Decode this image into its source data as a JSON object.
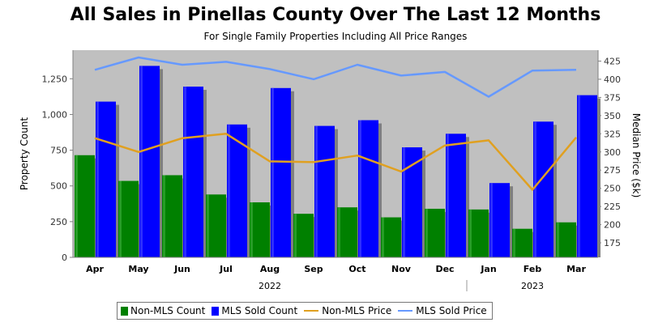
{
  "chart_data": {
    "type": "bar",
    "title": "All Sales in Pinellas County Over The Last 12 Months",
    "subtitle": "For Single Family Properties Including All Price Ranges",
    "categories": [
      "Apr",
      "May",
      "Jun",
      "Jul",
      "Aug",
      "Sep",
      "Oct",
      "Nov",
      "Dec",
      "Jan",
      "Feb",
      "Mar"
    ],
    "year_groups": [
      {
        "label": "2022",
        "from": 0,
        "to": 8
      },
      {
        "label": "2023",
        "from": 9,
        "to": 11
      }
    ],
    "ylabel_left": "Property Count",
    "ylabel_right": "Median Price ($k)",
    "ylim_left": [
      0,
      1450
    ],
    "yticks_left": [
      0,
      250,
      500,
      750,
      1000,
      1250
    ],
    "ytick_labels_left": [
      "0",
      "250",
      "500",
      "750",
      "1,000",
      "1,250"
    ],
    "ylim_right": [
      155,
      440
    ],
    "yticks_right": [
      175,
      200,
      225,
      250,
      275,
      300,
      325,
      350,
      375,
      400,
      425
    ],
    "ytick_labels_right": [
      "175",
      "200",
      "225",
      "250",
      "275",
      "300",
      "325",
      "350",
      "375",
      "400",
      "425"
    ],
    "bar_series": [
      {
        "name": "Non-MLS Count",
        "color": "#008000",
        "values": [
          715,
          535,
          575,
          440,
          385,
          305,
          350,
          280,
          340,
          335,
          200,
          245
        ]
      },
      {
        "name": "MLS Sold Count",
        "color": "#0000ff",
        "values": [
          1090,
          1340,
          1195,
          930,
          1185,
          920,
          960,
          770,
          865,
          520,
          950,
          1135
        ]
      }
    ],
    "line_series": [
      {
        "name": "Non-MLS Price",
        "color": "#e0a020",
        "values": [
          319,
          300,
          319,
          325,
          287,
          286,
          295,
          273,
          309,
          316,
          248,
          320
        ]
      },
      {
        "name": "MLS Sold Price",
        "color": "#6699ff",
        "values": [
          413,
          430,
          420,
          424,
          414,
          400,
          420,
          405,
          410,
          376,
          412,
          413
        ]
      }
    ],
    "legend_position": "bottom",
    "grid": false,
    "colors": {
      "plot_bg": "#c0c0c0",
      "bar_shadow": "#808080"
    }
  }
}
